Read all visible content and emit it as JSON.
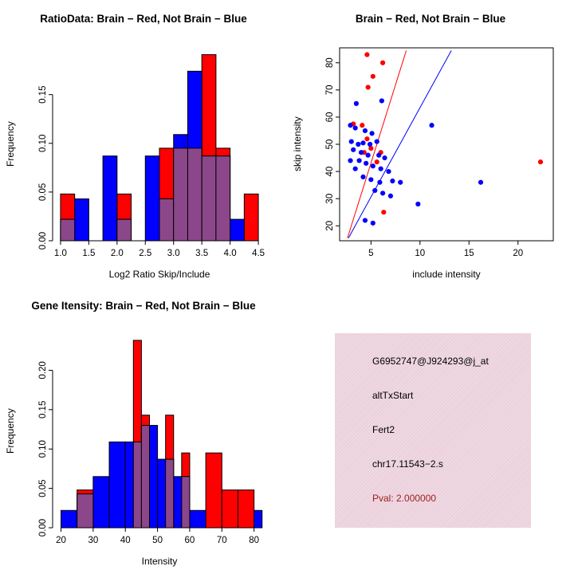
{
  "colors": {
    "red": "#FF0000",
    "blue": "#0000FF",
    "overlap": "#8B4789",
    "axis": "#000000",
    "info_box": "#EBD0DC",
    "pval_text": "#A02020"
  },
  "chart_data": [
    {
      "type": "bar",
      "bar_kind": "overlaid-histogram",
      "title": "RatioData: Brain − Red, Not Brain − Blue",
      "xlabel": "Log2 Ratio Skip/Include",
      "ylabel": "Frequency",
      "xlim": [
        0.86,
        4.64
      ],
      "ylim": [
        0,
        0.198
      ],
      "xticks": [
        1.0,
        1.5,
        2.0,
        2.5,
        3.0,
        3.5,
        4.0,
        4.5
      ],
      "xtick_labels": [
        "1.0",
        "1.5",
        "2.0",
        "2.5",
        "3.0",
        "3.5",
        "4.0",
        "4.5"
      ],
      "yticks": [
        0,
        0.05,
        0.1,
        0.15
      ],
      "ytick_labels": [
        "0.00",
        "0.05",
        "0.10",
        "0.15"
      ],
      "grid": false,
      "series": [
        {
          "name": "Brain",
          "color_key": "red",
          "bars": [
            [
              1.0,
              1.25,
              0.048
            ],
            [
              2.0,
              2.25,
              0.048
            ],
            [
              2.75,
              3.0,
              0.095
            ],
            [
              3.0,
              3.25,
              0.095
            ],
            [
              3.25,
              3.5,
              0.095
            ],
            [
              3.5,
              3.75,
              0.191
            ],
            [
              3.75,
              4.0,
              0.095
            ],
            [
              4.25,
              4.5,
              0.048
            ]
          ]
        },
        {
          "name": "Not Brain",
          "color_key": "blue",
          "bars": [
            [
              1.0,
              1.25,
              0.022
            ],
            [
              1.25,
              1.5,
              0.043
            ],
            [
              1.75,
              2.0,
              0.087
            ],
            [
              2.0,
              2.25,
              0.022
            ],
            [
              2.5,
              2.75,
              0.087
            ],
            [
              2.75,
              3.0,
              0.043
            ],
            [
              3.0,
              3.25,
              0.109
            ],
            [
              3.25,
              3.5,
              0.174
            ],
            [
              3.5,
              3.75,
              0.087
            ],
            [
              3.75,
              4.0,
              0.087
            ],
            [
              4.0,
              4.25,
              0.022
            ]
          ]
        }
      ]
    },
    {
      "type": "scatter",
      "title": "Brain − Red, Not Brain − Blue",
      "xlabel": "include intensity",
      "ylabel": "skip intensity",
      "xlim": [
        1.8,
        23.6
      ],
      "ylim": [
        14.5,
        85.5
      ],
      "xticks": [
        5,
        10,
        15,
        20
      ],
      "xtick_labels": [
        "5",
        "10",
        "15",
        "20"
      ],
      "yticks": [
        20,
        30,
        40,
        50,
        60,
        70,
        80
      ],
      "ytick_labels": [
        "20",
        "30",
        "40",
        "50",
        "60",
        "70",
        "80"
      ],
      "box": true,
      "grid": false,
      "lines": [
        {
          "color_key": "red",
          "from": [
            2.6,
            15.5
          ],
          "to": [
            8.6,
            84.5
          ]
        },
        {
          "color_key": "blue",
          "from": [
            2.7,
            15.5
          ],
          "to": [
            13.2,
            84.5
          ]
        }
      ],
      "series": [
        {
          "name": "Brain",
          "color_key": "red",
          "points": [
            [
              4.6,
              83
            ],
            [
              6.2,
              80
            ],
            [
              5.2,
              75
            ],
            [
              4.7,
              71
            ],
            [
              3.2,
              57.5
            ],
            [
              4.1,
              57
            ],
            [
              4.6,
              52
            ],
            [
              5.0,
              48.5
            ],
            [
              4.3,
              47
            ],
            [
              6.0,
              47
            ],
            [
              5.6,
              43.5
            ],
            [
              6.3,
              25
            ],
            [
              22.3,
              43.5
            ]
          ]
        },
        {
          "name": "Not Brain",
          "color_key": "blue",
          "points": [
            [
              3.5,
              65
            ],
            [
              6.1,
              66
            ],
            [
              2.9,
              57
            ],
            [
              3.4,
              56
            ],
            [
              4.4,
              55
            ],
            [
              5.1,
              54
            ],
            [
              3.0,
              51
            ],
            [
              3.7,
              50
            ],
            [
              4.2,
              50.5
            ],
            [
              4.9,
              50
            ],
            [
              5.6,
              51
            ],
            [
              3.2,
              48
            ],
            [
              4.0,
              47
            ],
            [
              4.7,
              46
            ],
            [
              5.8,
              46
            ],
            [
              6.4,
              45
            ],
            [
              3.8,
              44
            ],
            [
              2.9,
              44
            ],
            [
              4.5,
              43
            ],
            [
              5.2,
              42
            ],
            [
              6.0,
              41
            ],
            [
              3.4,
              41
            ],
            [
              6.8,
              40
            ],
            [
              4.2,
              38
            ],
            [
              5.0,
              37
            ],
            [
              5.9,
              36
            ],
            [
              7.2,
              36.5
            ],
            [
              8.0,
              36
            ],
            [
              5.4,
              33
            ],
            [
              6.2,
              32
            ],
            [
              7.0,
              31
            ],
            [
              9.8,
              28
            ],
            [
              11.2,
              57
            ],
            [
              16.2,
              36
            ],
            [
              4.4,
              22
            ],
            [
              5.2,
              21
            ]
          ]
        }
      ]
    },
    {
      "type": "bar",
      "bar_kind": "overlaid-histogram",
      "title": "Gene Itensity: Brain − Red, Not Brain − Blue",
      "xlabel": "Intensity",
      "ylabel": "Frequency",
      "xlim": [
        17.4,
        83.8
      ],
      "ylim": [
        0,
        0.245
      ],
      "xticks": [
        20,
        30,
        40,
        50,
        60,
        70,
        80
      ],
      "xtick_labels": [
        "20",
        "30",
        "40",
        "50",
        "60",
        "70",
        "80"
      ],
      "yticks": [
        0,
        0.05,
        0.1,
        0.15,
        0.2
      ],
      "ytick_labels": [
        "0.00",
        "0.05",
        "0.10",
        "0.15",
        "0.20"
      ],
      "grid": false,
      "series": [
        {
          "name": "Brain",
          "color_key": "red",
          "bars": [
            [
              25,
              30,
              0.048
            ],
            [
              42.5,
              45,
              0.238
            ],
            [
              45,
              47.5,
              0.143
            ],
            [
              52.5,
              55,
              0.143
            ],
            [
              57.5,
              60,
              0.095
            ],
            [
              65,
              70,
              0.095
            ],
            [
              70,
              75,
              0.048
            ],
            [
              75,
              80,
              0.048
            ]
          ]
        },
        {
          "name": "Not Brain",
          "color_key": "blue",
          "bars": [
            [
              20,
              25,
              0.022
            ],
            [
              25,
              30,
              0.043
            ],
            [
              30,
              35,
              0.065
            ],
            [
              35,
              40,
              0.109
            ],
            [
              40,
              45,
              0.109
            ],
            [
              45,
              50,
              0.13
            ],
            [
              50,
              55,
              0.087
            ],
            [
              55,
              60,
              0.065
            ],
            [
              60,
              65,
              0.022
            ],
            [
              80,
              82.5,
              0.022
            ]
          ]
        }
      ]
    }
  ],
  "info_panel": {
    "lines": [
      "G6952747@J924293@j_at",
      "altTxStart",
      "Fert2",
      "chr17.11543−2.s"
    ],
    "pval": "Pval: 2.000000"
  }
}
